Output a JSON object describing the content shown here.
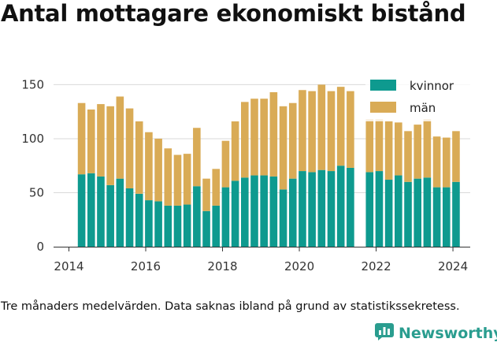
{
  "title": "Antal mottagare ekonomiskt bistånd",
  "footnote": "Tre månaders medelvärden. Data saknas ibland på grund av statistikssekretess.",
  "brand": "Newsworthy",
  "colors": {
    "kvinnor": "#0e9a8f",
    "man": "#d9ab56",
    "grid": "#d9d9d9",
    "axis": "#333333",
    "brand": "#2a9d8f"
  },
  "chart_data": {
    "type": "bar",
    "stacked": true,
    "title": "Antal mottagare ekonomiskt bistånd",
    "xlabel": "",
    "ylabel": "",
    "ylim": [
      0,
      170
    ],
    "xlim": [
      2013.6,
      2024.45
    ],
    "grid": true,
    "legend_position": "top-right",
    "x_ticks": [
      "2014",
      "2016",
      "2018",
      "2020",
      "2022",
      "2024"
    ],
    "y_ticks": [
      "0",
      "50",
      "100",
      "150"
    ],
    "x": [
      2014.33,
      2014.58,
      2014.83,
      2015.08,
      2015.33,
      2015.58,
      2015.83,
      2016.08,
      2016.33,
      2016.58,
      2016.83,
      2017.08,
      2017.33,
      2017.58,
      2017.83,
      2018.08,
      2018.33,
      2018.58,
      2018.83,
      2019.08,
      2019.33,
      2019.58,
      2019.83,
      2020.08,
      2020.33,
      2020.58,
      2020.83,
      2021.08,
      2021.33,
      2021.83,
      2022.08,
      2022.33,
      2022.58,
      2022.83,
      2023.08,
      2023.33,
      2023.58,
      2023.83,
      2024.08
    ],
    "series": [
      {
        "name": "kvinnor",
        "values": [
          67,
          68,
          65,
          57,
          63,
          54,
          49,
          43,
          42,
          38,
          38,
          39,
          56,
          33,
          38,
          55,
          61,
          64,
          66,
          66,
          65,
          53,
          63,
          70,
          69,
          71,
          70,
          75,
          73,
          69,
          70,
          62,
          66,
          60,
          63,
          64,
          55,
          55,
          60
        ]
      },
      {
        "name": "män",
        "values": [
          66,
          59,
          67,
          73,
          76,
          74,
          67,
          63,
          58,
          53,
          47,
          47,
          54,
          30,
          34,
          43,
          55,
          70,
          71,
          71,
          78,
          77,
          70,
          75,
          75,
          79,
          74,
          73,
          71,
          49,
          48,
          54,
          49,
          47,
          50,
          54,
          47,
          46,
          47
        ]
      }
    ]
  }
}
